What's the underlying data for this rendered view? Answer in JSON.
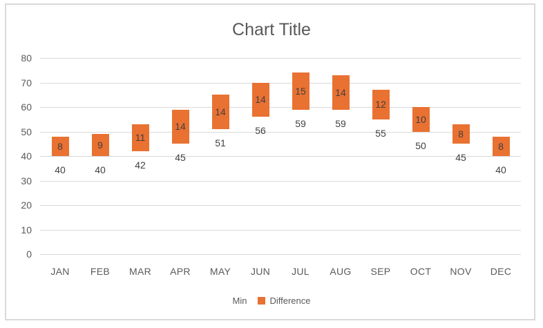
{
  "chart": {
    "title": "Chart Title",
    "colors": {
      "bar_fill": "#E97132",
      "gridline": "#D9D9D9",
      "frame_border": "#D9D9D9",
      "axis_text": "#595959",
      "title_text": "#595959",
      "data_label_text": "#404040",
      "background": "#FFFFFF"
    }
  },
  "chart_data": {
    "type": "bar",
    "subtype": "floating-column-range",
    "title": "Chart Title",
    "categories": [
      "JAN",
      "FEB",
      "MAR",
      "APR",
      "MAY",
      "JUN",
      "JUL",
      "AUG",
      "SEP",
      "OCT",
      "NOV",
      "DEC"
    ],
    "series": [
      {
        "name": "Min",
        "values": [
          40,
          40,
          42,
          45,
          51,
          56,
          59,
          59,
          55,
          50,
          45,
          40
        ],
        "fill_visible": false,
        "swatch_color": "transparent"
      },
      {
        "name": "Difference",
        "values": [
          8,
          9,
          11,
          14,
          14,
          14,
          15,
          14,
          12,
          10,
          8,
          8
        ],
        "fill_visible": true,
        "swatch_color": "#E97132"
      }
    ],
    "bar_tops_implied": [
      48,
      49,
      53,
      59,
      65,
      70,
      74,
      73,
      67,
      60,
      53,
      48
    ],
    "y_axis": {
      "min": 0,
      "max": 80,
      "tick_step": 10,
      "ticks": [
        0,
        10,
        20,
        30,
        40,
        50,
        60,
        70,
        80
      ]
    },
    "x_axis_label": "",
    "y_axis_label": "",
    "grid": true,
    "legend_position": "bottom",
    "data_labels": {
      "difference_placement": "centered-in-bar",
      "min_placement": "below-bar"
    }
  }
}
